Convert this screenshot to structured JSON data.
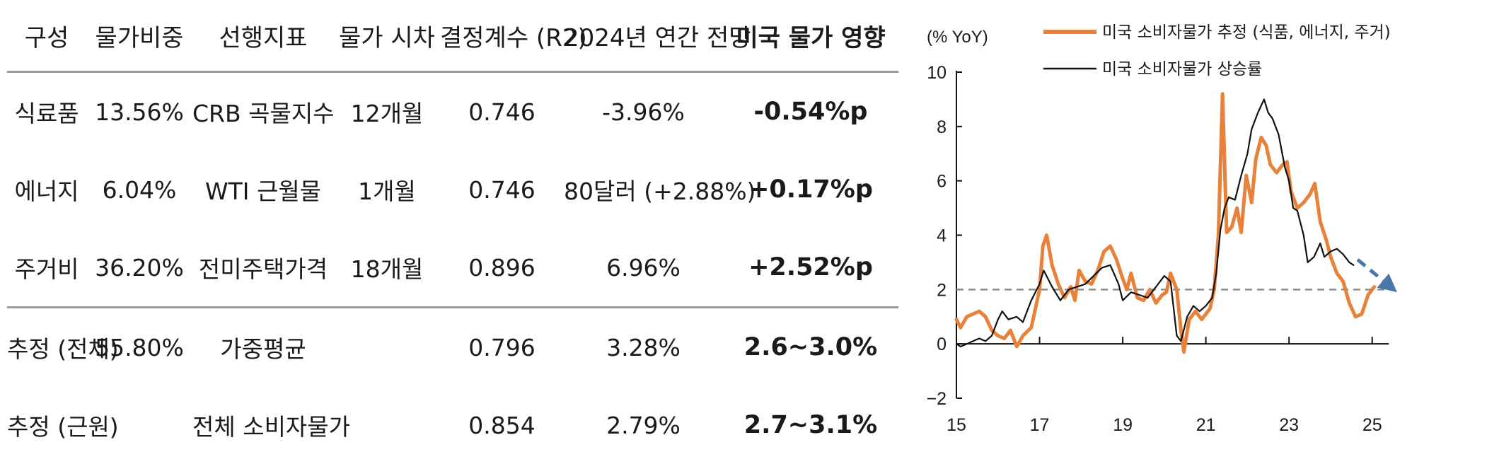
{
  "table": {
    "headers": [
      "구성",
      "물가비중",
      "선행지표",
      "물가 시차",
      "결정계수 (R2)",
      "2024년 연간 전망",
      "미국 물가 영향"
    ],
    "rows": [
      [
        "식료품",
        "13.56%",
        "CRB 곡물지수",
        "12개월",
        "0.746",
        "-3.96%",
        "-0.54%p"
      ],
      [
        "에너지",
        "6.04%",
        "WTI 근월물",
        "1개월",
        "0.746",
        "80달러 (+2.88%)",
        "+0.17%p"
      ],
      [
        "주거비",
        "36.20%",
        "전미주택가격",
        "18개월",
        "0.896",
        "6.96%",
        "+2.52%p"
      ],
      [
        "추정 (전체)",
        "55.80%",
        "가중평균",
        "",
        "0.796",
        "3.28%",
        "2.6~3.0%"
      ],
      [
        "추정 (근원)",
        "",
        "전체 소비자물가",
        "",
        "0.854",
        "2.79%",
        "2.7~3.1%"
      ]
    ]
  },
  "chart_data": {
    "type": "line",
    "ylabel": "(% YoY)",
    "ylim": [
      -2,
      10
    ],
    "yticks": [
      -2,
      0,
      2,
      4,
      6,
      8,
      10
    ],
    "xlim": [
      2015,
      2025.6
    ],
    "xticks": [
      15,
      17,
      19,
      21,
      23,
      25
    ],
    "reference_line": 2,
    "series": [
      {
        "name": "미국 소비자물가 추정 (식품, 에너지, 주거)",
        "color": "#e8823a",
        "points": [
          [
            2015.0,
            0.9
          ],
          [
            2015.1,
            0.6
          ],
          [
            2015.25,
            1.0
          ],
          [
            2015.4,
            1.1
          ],
          [
            2015.55,
            1.2
          ],
          [
            2015.7,
            1.0
          ],
          [
            2015.85,
            0.5
          ],
          [
            2016.0,
            0.3
          ],
          [
            2016.15,
            0.2
          ],
          [
            2016.3,
            0.5
          ],
          [
            2016.45,
            -0.1
          ],
          [
            2016.6,
            0.3
          ],
          [
            2016.8,
            0.6
          ],
          [
            2016.9,
            1.3
          ],
          [
            2017.0,
            2.0
          ],
          [
            2017.08,
            3.6
          ],
          [
            2017.17,
            4.0
          ],
          [
            2017.3,
            2.9
          ],
          [
            2017.45,
            2.2
          ],
          [
            2017.6,
            1.7
          ],
          [
            2017.75,
            2.1
          ],
          [
            2017.85,
            1.6
          ],
          [
            2017.95,
            2.7
          ],
          [
            2018.1,
            2.3
          ],
          [
            2018.25,
            2.2
          ],
          [
            2018.4,
            2.7
          ],
          [
            2018.55,
            3.4
          ],
          [
            2018.7,
            3.6
          ],
          [
            2018.85,
            3.1
          ],
          [
            2019.0,
            2.4
          ],
          [
            2019.1,
            2.0
          ],
          [
            2019.2,
            2.6
          ],
          [
            2019.35,
            1.7
          ],
          [
            2019.5,
            1.6
          ],
          [
            2019.65,
            2.0
          ],
          [
            2019.8,
            1.5
          ],
          [
            2019.95,
            1.8
          ],
          [
            2020.05,
            1.9
          ],
          [
            2020.15,
            2.6
          ],
          [
            2020.3,
            2.0
          ],
          [
            2020.4,
            0.5
          ],
          [
            2020.47,
            -0.3
          ],
          [
            2020.6,
            0.9
          ],
          [
            2020.75,
            1.2
          ],
          [
            2020.9,
            0.9
          ],
          [
            2021.0,
            1.1
          ],
          [
            2021.1,
            1.3
          ],
          [
            2021.2,
            2.0
          ],
          [
            2021.3,
            4.0
          ],
          [
            2021.4,
            9.2
          ],
          [
            2021.5,
            4.1
          ],
          [
            2021.62,
            4.3
          ],
          [
            2021.75,
            5.0
          ],
          [
            2021.85,
            4.1
          ],
          [
            2021.97,
            6.2
          ],
          [
            2022.1,
            5.2
          ],
          [
            2022.2,
            6.8
          ],
          [
            2022.33,
            7.6
          ],
          [
            2022.45,
            7.3
          ],
          [
            2022.55,
            6.6
          ],
          [
            2022.7,
            6.3
          ],
          [
            2022.85,
            6.6
          ],
          [
            2022.95,
            6.7
          ],
          [
            2023.05,
            5.6
          ],
          [
            2023.2,
            5.0
          ],
          [
            2023.35,
            5.2
          ],
          [
            2023.5,
            5.5
          ],
          [
            2023.62,
            5.9
          ],
          [
            2023.75,
            4.5
          ],
          [
            2023.9,
            3.8
          ],
          [
            2024.0,
            3.2
          ],
          [
            2024.15,
            2.6
          ],
          [
            2024.3,
            2.3
          ],
          [
            2024.45,
            1.5
          ],
          [
            2024.6,
            1.0
          ],
          [
            2024.75,
            1.1
          ],
          [
            2024.9,
            1.8
          ],
          [
            2025.05,
            2.1
          ]
        ]
      },
      {
        "name": "미국 소비자물가 상승률",
        "color": "#111111",
        "points": [
          [
            2015.0,
            0.0
          ],
          [
            2015.1,
            -0.1
          ],
          [
            2015.25,
            0.0
          ],
          [
            2015.4,
            0.1
          ],
          [
            2015.55,
            0.2
          ],
          [
            2015.7,
            0.1
          ],
          [
            2015.85,
            0.3
          ],
          [
            2016.0,
            0.9
          ],
          [
            2016.1,
            1.2
          ],
          [
            2016.25,
            0.9
          ],
          [
            2016.45,
            1.0
          ],
          [
            2016.6,
            0.8
          ],
          [
            2016.8,
            1.6
          ],
          [
            2017.0,
            2.2
          ],
          [
            2017.1,
            2.7
          ],
          [
            2017.3,
            2.1
          ],
          [
            2017.5,
            1.6
          ],
          [
            2017.7,
            2.0
          ],
          [
            2017.9,
            2.1
          ],
          [
            2018.1,
            2.2
          ],
          [
            2018.3,
            2.5
          ],
          [
            2018.5,
            2.8
          ],
          [
            2018.7,
            2.9
          ],
          [
            2018.9,
            2.2
          ],
          [
            2019.0,
            1.6
          ],
          [
            2019.2,
            1.9
          ],
          [
            2019.4,
            1.8
          ],
          [
            2019.6,
            1.7
          ],
          [
            2019.8,
            2.1
          ],
          [
            2020.0,
            2.5
          ],
          [
            2020.15,
            2.3
          ],
          [
            2020.3,
            0.3
          ],
          [
            2020.4,
            0.1
          ],
          [
            2020.55,
            1.0
          ],
          [
            2020.7,
            1.4
          ],
          [
            2020.85,
            1.2
          ],
          [
            2021.0,
            1.4
          ],
          [
            2021.15,
            1.7
          ],
          [
            2021.25,
            2.6
          ],
          [
            2021.35,
            4.2
          ],
          [
            2021.45,
            5.0
          ],
          [
            2021.55,
            5.4
          ],
          [
            2021.7,
            5.3
          ],
          [
            2021.85,
            6.2
          ],
          [
            2022.0,
            7.0
          ],
          [
            2022.1,
            7.9
          ],
          [
            2022.25,
            8.5
          ],
          [
            2022.4,
            9.0
          ],
          [
            2022.5,
            8.5
          ],
          [
            2022.6,
            8.3
          ],
          [
            2022.75,
            7.7
          ],
          [
            2022.9,
            6.5
          ],
          [
            2023.0,
            6.0
          ],
          [
            2023.1,
            5.0
          ],
          [
            2023.2,
            4.9
          ],
          [
            2023.35,
            4.0
          ],
          [
            2023.45,
            3.0
          ],
          [
            2023.6,
            3.2
          ],
          [
            2023.75,
            3.7
          ],
          [
            2023.85,
            3.2
          ],
          [
            2024.0,
            3.4
          ],
          [
            2024.15,
            3.5
          ],
          [
            2024.3,
            3.3
          ],
          [
            2024.45,
            3.0
          ],
          [
            2024.55,
            2.9
          ]
        ]
      }
    ],
    "projection_arrow": {
      "color": "#4a78a8",
      "from": [
        2024.65,
        3.1
      ],
      "to": [
        2025.6,
        1.9
      ]
    }
  }
}
